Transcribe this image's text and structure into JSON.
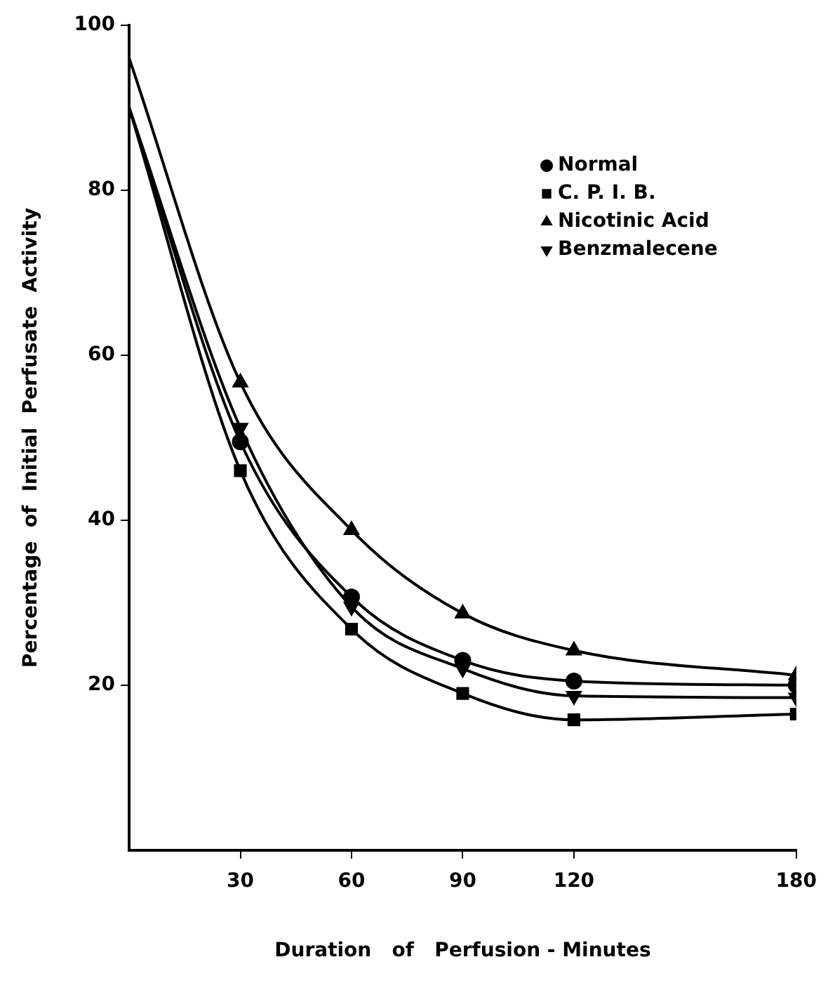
{
  "chart_data": {
    "type": "line",
    "xlabel": "Duration   of   Perfusion - Minutes",
    "ylabel": "Percentage  of  Initial  Perfusate  Activity",
    "x": [
      0,
      30,
      60,
      90,
      120,
      180
    ],
    "xlim": [
      0,
      180
    ],
    "xticks": [
      30,
      60,
      90,
      120,
      180
    ],
    "ylim": [
      0,
      100
    ],
    "yticks": [
      20,
      40,
      60,
      80,
      100
    ],
    "grid": false,
    "legend": "top right",
    "line_style": "solid",
    "series": [
      {
        "name": "Normal",
        "color": "#000000",
        "marker": "circle",
        "values": [
          90,
          49.5,
          30.7,
          23,
          20.5,
          20
        ]
      },
      {
        "name": "C. P. I. B.",
        "color": "#000000",
        "marker": "square",
        "values": [
          90,
          46,
          26.8,
          19,
          15.8,
          16.5
        ]
      },
      {
        "name": "Nicotinic Acid",
        "color": "#000000",
        "marker": "triangle",
        "values": [
          96,
          56.7,
          38.8,
          28.7,
          24.2,
          21.2
        ]
      },
      {
        "name": "Benzmalecene",
        "color": "#000000",
        "marker": "triangle-down",
        "values": [
          90,
          51.2,
          29.5,
          22,
          18.7,
          18.5
        ]
      }
    ]
  }
}
